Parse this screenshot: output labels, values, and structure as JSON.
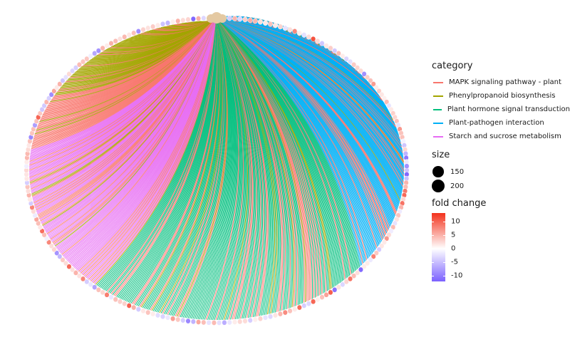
{
  "chart_data": {
    "type": "chord-network",
    "hub_color": "#e4c9a2",
    "category_legend": {
      "title": "category",
      "items": [
        {
          "label": "MAPK signaling pathway - plant",
          "color": "#f8766d"
        },
        {
          "label": "Phenylpropanoid biosynthesis",
          "color": "#a3a500"
        },
        {
          "label": "Plant hormone signal transduction",
          "color": "#00bf7d"
        },
        {
          "label": "Plant-pathogen interaction",
          "color": "#00b0f6"
        },
        {
          "label": "Starch and sucrose metabolism",
          "color": "#e76bf3"
        }
      ]
    },
    "size_legend": {
      "title": "size",
      "items": [
        {
          "label": "150",
          "value": 150
        },
        {
          "label": "200",
          "value": 200
        }
      ]
    },
    "fold_change_legend": {
      "title": "fold change",
      "ticks": [
        {
          "label": "10",
          "value": 10
        },
        {
          "label": "5",
          "value": 5
        },
        {
          "label": "0",
          "value": 0
        },
        {
          "label": "-5",
          "value": -5
        },
        {
          "label": "-10",
          "value": -10
        }
      ],
      "range": [
        -12,
        13
      ],
      "low_color": "#7b61ff",
      "mid_color": "#ffffff",
      "high_color": "#f3321c"
    },
    "segments": [
      {
        "category": "Phenylpropanoid biosynthesis",
        "angle_start": -95,
        "angle_end": -150,
        "links": 110
      },
      {
        "category": "MAPK signaling pathway - plant",
        "angle_start": -150,
        "angle_end": -172,
        "links": 45
      },
      {
        "category": "Starch and sucrose metabolism",
        "angle_start": -172,
        "angle_end": -230,
        "links": 120
      },
      {
        "category": "Plant hormone signal transduction",
        "angle_start": -230,
        "angle_end": -320,
        "links": 180
      },
      {
        "category": "Plant-pathogen interaction",
        "angle_start": -320,
        "angle_end": -445,
        "links": 250
      }
    ]
  }
}
